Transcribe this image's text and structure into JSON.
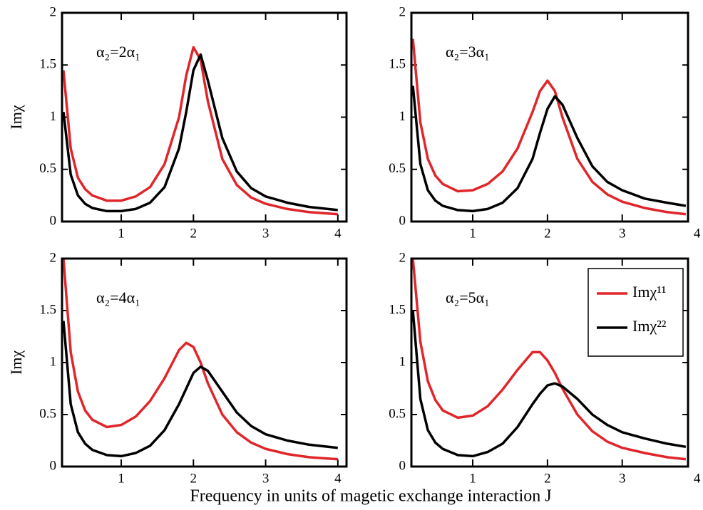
{
  "xlabel": "Frequency in units of magetic exchange interaction J",
  "chart_data": [
    {
      "type": "line",
      "ylabel": "Imχ",
      "annotation": "α₂=2α₁",
      "xlim": [
        0.18,
        4.12
      ],
      "ylim": [
        0,
        2
      ],
      "xticks": [
        1,
        2,
        3,
        4
      ],
      "yticks": [
        0,
        0.5,
        1,
        1.5,
        2
      ],
      "x": [
        0.2,
        0.3,
        0.4,
        0.5,
        0.6,
        0.8,
        1.0,
        1.2,
        1.4,
        1.6,
        1.8,
        1.9,
        2.0,
        2.1,
        2.2,
        2.4,
        2.6,
        2.8,
        3.0,
        3.3,
        3.6,
        4.0
      ],
      "series": [
        {
          "color": "#e0262b",
          "values": [
            1.45,
            0.7,
            0.42,
            0.31,
            0.25,
            0.2,
            0.2,
            0.24,
            0.33,
            0.55,
            1.0,
            1.4,
            1.67,
            1.55,
            1.15,
            0.6,
            0.35,
            0.23,
            0.17,
            0.12,
            0.09,
            0.07
          ]
        },
        {
          "color": "#000000",
          "values": [
            1.05,
            0.45,
            0.25,
            0.17,
            0.13,
            0.1,
            0.1,
            0.12,
            0.18,
            0.33,
            0.7,
            1.05,
            1.45,
            1.6,
            1.35,
            0.8,
            0.48,
            0.32,
            0.24,
            0.18,
            0.14,
            0.11
          ]
        }
      ]
    },
    {
      "type": "line",
      "annotation": "α₂=3α₁",
      "xlim": [
        0.18,
        3.88
      ],
      "ylim": [
        0,
        2
      ],
      "xticks": [
        1,
        2,
        3,
        4
      ],
      "yticks": [
        0,
        0.5,
        1,
        1.5,
        2
      ],
      "x": [
        0.2,
        0.3,
        0.4,
        0.5,
        0.6,
        0.8,
        1.0,
        1.2,
        1.4,
        1.6,
        1.8,
        1.9,
        2.0,
        2.1,
        2.2,
        2.4,
        2.6,
        2.8,
        3.0,
        3.3,
        3.6,
        3.85
      ],
      "series": [
        {
          "color": "#e0262b",
          "values": [
            1.75,
            0.95,
            0.6,
            0.44,
            0.36,
            0.29,
            0.3,
            0.36,
            0.48,
            0.7,
            1.05,
            1.25,
            1.35,
            1.25,
            1.0,
            0.6,
            0.38,
            0.26,
            0.19,
            0.13,
            0.09,
            0.07
          ]
        },
        {
          "color": "#000000",
          "values": [
            1.3,
            0.55,
            0.3,
            0.2,
            0.15,
            0.11,
            0.1,
            0.12,
            0.18,
            0.32,
            0.6,
            0.85,
            1.08,
            1.2,
            1.12,
            0.8,
            0.53,
            0.38,
            0.3,
            0.22,
            0.18,
            0.15
          ]
        }
      ]
    },
    {
      "type": "line",
      "ylabel": "Imχ",
      "annotation": "α₂=4α₁",
      "xlim": [
        0.18,
        4.12
      ],
      "ylim": [
        0,
        2
      ],
      "xticks": [
        1,
        2,
        3,
        4
      ],
      "yticks": [
        0,
        0.5,
        1,
        1.5,
        2
      ],
      "x": [
        0.2,
        0.3,
        0.4,
        0.5,
        0.6,
        0.8,
        1.0,
        1.2,
        1.4,
        1.6,
        1.8,
        1.9,
        2.0,
        2.1,
        2.2,
        2.4,
        2.6,
        2.8,
        3.0,
        3.3,
        3.6,
        4.0
      ],
      "series": [
        {
          "color": "#e0262b",
          "values": [
            2.0,
            1.1,
            0.72,
            0.54,
            0.45,
            0.38,
            0.4,
            0.48,
            0.63,
            0.85,
            1.12,
            1.19,
            1.15,
            1.0,
            0.8,
            0.5,
            0.33,
            0.23,
            0.17,
            0.12,
            0.09,
            0.07
          ]
        },
        {
          "color": "#000000",
          "values": [
            1.4,
            0.6,
            0.33,
            0.22,
            0.16,
            0.11,
            0.1,
            0.13,
            0.2,
            0.35,
            0.6,
            0.75,
            0.9,
            0.96,
            0.92,
            0.72,
            0.52,
            0.39,
            0.31,
            0.25,
            0.21,
            0.18
          ]
        }
      ]
    },
    {
      "type": "line",
      "annotation": "α₂=5α₁",
      "legend": "upper right",
      "xlim": [
        0.18,
        3.88
      ],
      "ylim": [
        0,
        2
      ],
      "xticks": [
        1,
        2,
        3,
        4
      ],
      "yticks": [
        0,
        0.5,
        1,
        1.5,
        2
      ],
      "x": [
        0.2,
        0.3,
        0.4,
        0.5,
        0.6,
        0.8,
        1.0,
        1.2,
        1.4,
        1.6,
        1.8,
        1.9,
        2.0,
        2.1,
        2.2,
        2.4,
        2.6,
        2.8,
        3.0,
        3.3,
        3.6,
        3.85
      ],
      "series": [
        {
          "name": "Imχ¹¹",
          "color": "#e0262b",
          "values": [
            2.0,
            1.2,
            0.82,
            0.64,
            0.54,
            0.47,
            0.49,
            0.58,
            0.74,
            0.93,
            1.1,
            1.1,
            1.02,
            0.9,
            0.75,
            0.5,
            0.34,
            0.24,
            0.18,
            0.13,
            0.09,
            0.07
          ]
        },
        {
          "name": "Imχ²²",
          "color": "#000000",
          "values": [
            1.5,
            0.65,
            0.35,
            0.23,
            0.17,
            0.11,
            0.1,
            0.14,
            0.22,
            0.38,
            0.6,
            0.7,
            0.78,
            0.8,
            0.77,
            0.65,
            0.5,
            0.4,
            0.33,
            0.27,
            0.22,
            0.19
          ]
        }
      ]
    }
  ]
}
